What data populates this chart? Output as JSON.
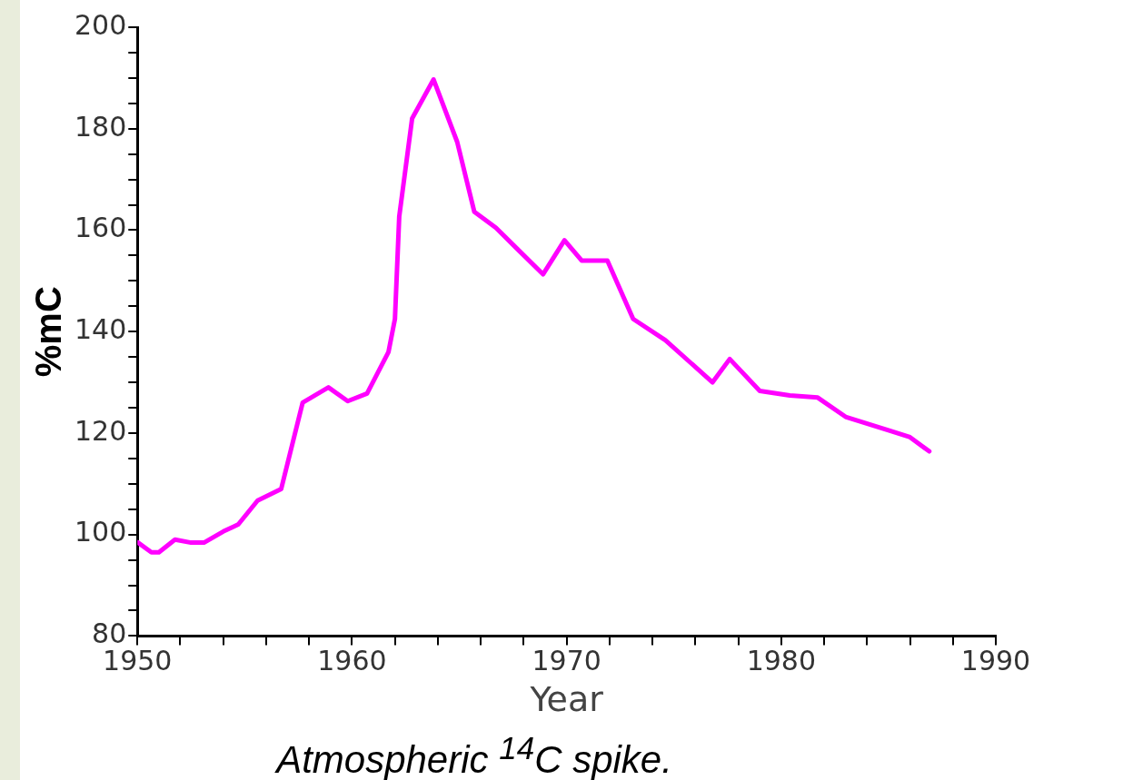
{
  "chart_data": {
    "type": "line",
    "xlabel": "Year",
    "ylabel": "%mC",
    "annotations": [
      "Atmospheric $^{14}$C spike."
    ],
    "x": [
      1950,
      1950.65,
      1951,
      1951.75,
      1952.5,
      1953.1,
      1954,
      1954.7,
      1955.6,
      1956.7,
      1957.7,
      1958.9,
      1959.8,
      1960.7,
      1961.7,
      1962,
      1962.2,
      1962.8,
      1963.8,
      1964.9,
      1965.7,
      1966.7,
      1967.7,
      1968.9,
      1969.9,
      1970.7,
      1971.9,
      1973.1,
      1974.6,
      1976.8,
      1977.6,
      1979,
      1980.4,
      1981.7,
      1983,
      1985.1,
      1986,
      1986.9
    ],
    "series": [
      {
        "color": "#ff00ff",
        "values": [
          98.5,
          96.5,
          96.5,
          99,
          98.4,
          98.4,
          100.6,
          102,
          106.7,
          109,
          126,
          129,
          126.3,
          127.8,
          136,
          142.5,
          162.7,
          182,
          189.7,
          177.4,
          163.6,
          160.5,
          156.3,
          151.3,
          158,
          154,
          154,
          142.5,
          138.3,
          130,
          134.6,
          128.3,
          127.4,
          127,
          123.2,
          120.4,
          119.2,
          116.4
        ]
      }
    ],
    "xlim": [
      1950,
      1990
    ],
    "xticks": [
      1950,
      {
        "value": 1952,
        "label": null
      },
      {
        "value": 1954,
        "label": null
      },
      {
        "value": 1956,
        "label": null
      },
      {
        "value": 1958,
        "label": null
      },
      1960,
      {
        "value": 1962,
        "label": null
      },
      {
        "value": 1964,
        "label": null
      },
      {
        "value": 1966,
        "label": null
      },
      {
        "value": 1968,
        "label": null
      },
      1970,
      {
        "value": 1972,
        "label": null
      },
      {
        "value": 1974,
        "label": null
      },
      {
        "value": 1976,
        "label": null
      },
      {
        "value": 1978,
        "label": null
      },
      1980,
      {
        "value": 1982,
        "label": null
      },
      {
        "value": 1984,
        "label": null
      },
      {
        "value": 1986,
        "label": null
      },
      {
        "value": 1988,
        "label": null
      },
      1990
    ],
    "ylim": [
      80,
      200
    ],
    "yticks": [
      80,
      {
        "value": 85,
        "label": null
      },
      {
        "value": 90,
        "label": null
      },
      {
        "value": 95,
        "label": null
      },
      100,
      {
        "value": 105,
        "label": null
      },
      {
        "value": 110,
        "label": null
      },
      {
        "value": 115,
        "label": null
      },
      120,
      {
        "value": 125,
        "label": null
      },
      {
        "value": 130,
        "label": null
      },
      {
        "value": 135,
        "label": null
      },
      140,
      {
        "value": 145,
        "label": null
      },
      {
        "value": 150,
        "label": null
      },
      {
        "value": 155,
        "label": null
      },
      160,
      {
        "value": 165,
        "label": null
      },
      {
        "value": 170,
        "label": null
      },
      {
        "value": 175,
        "label": null
      },
      180,
      {
        "value": 185,
        "label": null
      },
      {
        "value": 190,
        "label": null
      },
      {
        "value": 195,
        "label": null
      },
      200
    ],
    "grid": false,
    "legend": false,
    "marker": "none",
    "line_style": "solid"
  }
}
